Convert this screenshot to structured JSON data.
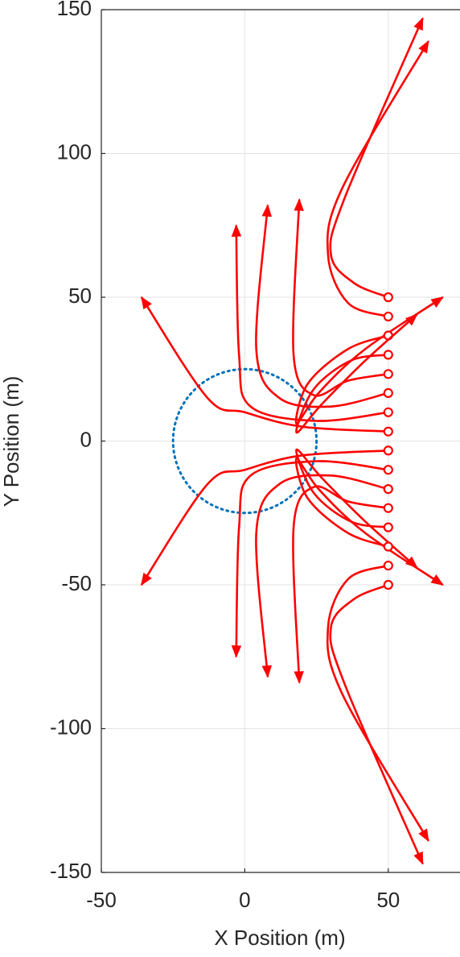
{
  "chart_data": {
    "type": "line",
    "x_label": "X Position (m)",
    "y_label": "Y Position (m)",
    "xlim": [
      -50,
      75
    ],
    "ylim": [
      -150,
      150
    ],
    "xticks": [
      -50,
      0,
      50
    ],
    "yticks": [
      -150,
      -100,
      -50,
      0,
      50,
      100,
      150
    ],
    "grid": true,
    "circle": {
      "center": [
        0,
        0
      ],
      "radius": 25,
      "color": "#0072bd"
    },
    "series": [
      {
        "color": "#ff0000",
        "x": [
          50,
          38,
          30,
          35,
          62
        ],
        "y": [
          50,
          55,
          65,
          85,
          147
        ]
      },
      {
        "color": "#ff0000",
        "x": [
          50,
          36,
          29,
          34,
          64
        ],
        "y": [
          43.3,
          48,
          65,
          88,
          139
        ]
      },
      {
        "color": "#ff0000",
        "x": [
          50,
          36,
          22,
          18,
          26,
          42,
          69
        ],
        "y": [
          36.7,
          32,
          20,
          6,
          17,
          32,
          50
        ]
      },
      {
        "color": "#ff0000",
        "x": [
          50,
          37,
          24,
          18,
          27,
          42,
          60
        ],
        "y": [
          30,
          28,
          18,
          3,
          13,
          28,
          44
        ]
      },
      {
        "color": "#ff0000",
        "x": [
          50,
          36,
          24,
          17,
          19
        ],
        "y": [
          23.3,
          21,
          16,
          30,
          84
        ]
      },
      {
        "color": "#ff0000",
        "x": [
          50,
          30,
          12,
          4,
          8
        ],
        "y": [
          16.7,
          12,
          15,
          32,
          82
        ]
      },
      {
        "color": "#ff0000",
        "x": [
          50,
          25,
          2,
          -2,
          -3
        ],
        "y": [
          10,
          7,
          12,
          30,
          75
        ]
      },
      {
        "color": "#ff0000",
        "x": [
          50,
          20,
          0,
          -13,
          -36
        ],
        "y": [
          3.3,
          5,
          10,
          15,
          50
        ]
      },
      {
        "color": "#ff0000",
        "x": [
          50,
          20,
          0,
          -13,
          -36
        ],
        "y": [
          -3.3,
          -5,
          -10,
          -15,
          -50
        ]
      },
      {
        "color": "#ff0000",
        "x": [
          50,
          25,
          2,
          -2,
          -3
        ],
        "y": [
          -10,
          -7,
          -12,
          -30,
          -75
        ]
      },
      {
        "color": "#ff0000",
        "x": [
          50,
          30,
          12,
          4,
          8
        ],
        "y": [
          -16.7,
          -12,
          -15,
          -32,
          -82
        ]
      },
      {
        "color": "#ff0000",
        "x": [
          50,
          36,
          24,
          17,
          19
        ],
        "y": [
          -23.3,
          -21,
          -16,
          -30,
          -84
        ]
      },
      {
        "color": "#ff0000",
        "x": [
          50,
          37,
          24,
          18,
          27,
          42,
          60
        ],
        "y": [
          -30,
          -28,
          -18,
          -3,
          -13,
          -28,
          -44
        ]
      },
      {
        "color": "#ff0000",
        "x": [
          50,
          36,
          22,
          18,
          26,
          42,
          69
        ],
        "y": [
          -36.7,
          -32,
          -20,
          -6,
          -17,
          -32,
          -50
        ]
      },
      {
        "color": "#ff0000",
        "x": [
          50,
          36,
          29,
          34,
          64
        ],
        "y": [
          -43.3,
          -48,
          -65,
          -88,
          -139
        ]
      },
      {
        "color": "#ff0000",
        "x": [
          50,
          38,
          30,
          35,
          62
        ],
        "y": [
          -50,
          -55,
          -65,
          -85,
          -147
        ]
      }
    ]
  }
}
